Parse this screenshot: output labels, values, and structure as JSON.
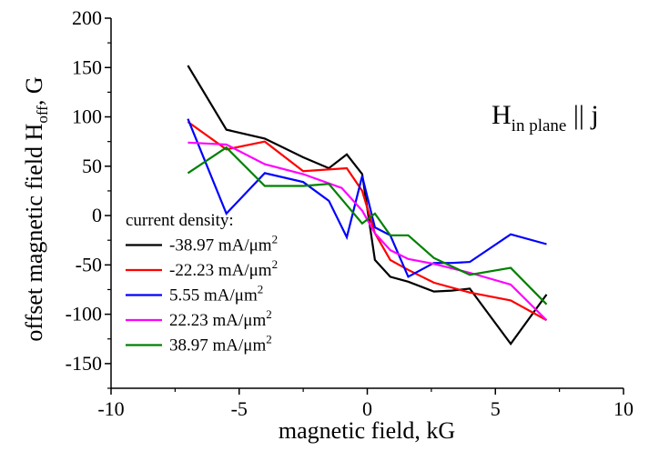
{
  "chart_data": {
    "type": "line",
    "xlabel": "magnetic field, kG",
    "ylabel_main": "offset magnetic field H",
    "ylabel_sub": "off",
    "ylabel_tail": ", G",
    "annotation": {
      "main": "H",
      "sub": "in plane",
      "tail": " || j"
    },
    "xlim": [
      -10,
      10
    ],
    "ylim": [
      -175,
      200
    ],
    "xticks": [
      "-10",
      "-5",
      "0",
      "5",
      "10"
    ],
    "xtick_values": [
      -10,
      -5,
      0,
      5,
      10
    ],
    "yticks": [
      "200",
      "150",
      "100",
      "50",
      "0",
      "-50",
      "-100",
      "-150"
    ],
    "ytick_values": [
      200,
      150,
      100,
      50,
      0,
      -50,
      -100,
      -150
    ],
    "legend_title": "current density:",
    "legend_position": "bottom-left",
    "series": [
      {
        "name": "-38.97 mA/μm",
        "name_sup": "2",
        "color": "#000000",
        "x": [
          -7,
          -5.5,
          -4,
          -2.5,
          -1.5,
          -0.8,
          -0.2,
          0.3,
          0.9,
          1.6,
          2.6,
          3.3,
          4,
          5.6,
          7
        ],
        "y": [
          152,
          87,
          78,
          59,
          48,
          62,
          42,
          -45,
          -62,
          -67,
          -77,
          -76,
          -74,
          -130,
          -80
        ]
      },
      {
        "name": "-22.23 mA/μm",
        "name_sup": "2",
        "color": "#ff0000",
        "x": [
          -7,
          -5.5,
          -4,
          -2.5,
          -0.8,
          -0.2,
          0.3,
          0.9,
          1.6,
          2.6,
          4,
          5.6,
          7
        ],
        "y": [
          95,
          67,
          75,
          45,
          48,
          25,
          -18,
          -45,
          -55,
          -68,
          -78,
          -86,
          -106
        ]
      },
      {
        "name": "5.55 mA/μm",
        "name_sup": "2",
        "color": "#0000ff",
        "x": [
          -7,
          -5.5,
          -4,
          -2.5,
          -1.5,
          -0.8,
          -0.2,
          0.3,
          0.9,
          1.6,
          2.6,
          3.3,
          4,
          5.6,
          7
        ],
        "y": [
          98,
          2,
          43,
          34,
          15,
          -22,
          40,
          -12,
          -20,
          -62,
          -48,
          -48,
          -47,
          -19,
          -29
        ]
      },
      {
        "name": "22.23  mA/μm",
        "name_sup": "2",
        "color": "#ff00ff",
        "x": [
          -7,
          -5.5,
          -4,
          -2.5,
          -1,
          -0.2,
          0.3,
          0.9,
          1.6,
          2.6,
          4,
          5.6,
          7
        ],
        "y": [
          74,
          72,
          52,
          42,
          28,
          5,
          -18,
          -35,
          -44,
          -49,
          -58,
          -70,
          -106
        ]
      },
      {
        "name": "38.97 mA/μm",
        "name_sup": "2",
        "color": "#008000",
        "x": [
          -7,
          -5.5,
          -4,
          -2.5,
          -1.5,
          -0.2,
          0.3,
          0.9,
          1.6,
          2.6,
          4,
          5.6,
          7
        ],
        "y": [
          43,
          69,
          30,
          30,
          32,
          -8,
          2,
          -20,
          -20,
          -43,
          -60,
          -53,
          -90
        ]
      }
    ]
  }
}
